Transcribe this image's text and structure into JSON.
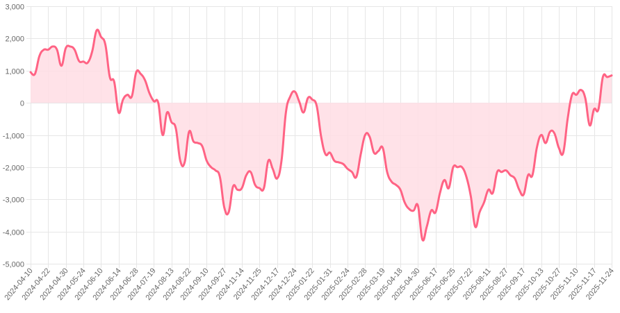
{
  "chart_data": {
    "type": "area",
    "title": "",
    "xlabel": "",
    "ylabel": "",
    "ylim": [
      -5000,
      3000
    ],
    "y_ticks": [
      3000,
      2000,
      1000,
      0,
      -1000,
      -2000,
      -3000,
      -4000,
      -5000
    ],
    "y_tick_labels": [
      "3,000",
      "2,000",
      "1,000",
      "0",
      "-1,000",
      "-2,000",
      "-3,000",
      "-4,000",
      "-5,000"
    ],
    "x_tick_labels": [
      "2024-04-10",
      "2024-04-22",
      "2024-04-30",
      "2024-05-24",
      "2024-06-10",
      "2024-06-14",
      "2024-06-28",
      "2024-07-19",
      "2024-08-13",
      "2024-08-22",
      "2024-09-10",
      "2024-09-27",
      "2024-11-14",
      "2024-11-25",
      "2024-12-17",
      "2024-12-24",
      "2025-01-22",
      "2025-01-31",
      "2025-02-24",
      "2025-02-28",
      "2025-03-19",
      "2025-04-18",
      "2025-04-30",
      "2025-06-17",
      "2025-06-25",
      "2025-07-22",
      "2025-08-11",
      "2025-08-27",
      "2025-09-17",
      "2025-10-13",
      "2025-10-27",
      "2025-11-10",
      "2025-11-17",
      "2025-11-24"
    ],
    "grid": true,
    "legend": "none",
    "colors": {
      "line": "#ff6384",
      "fill": "#ffdde4",
      "grid": "#e6e6e6",
      "axis_text": "#666666"
    },
    "series": [
      {
        "values": [
          950,
          900,
          1450,
          1650,
          1650,
          1750,
          1650,
          1150,
          1700,
          1750,
          1650,
          1300,
          1280,
          1250,
          1600,
          2250,
          2050,
          1800,
          800,
          650,
          -300,
          100,
          250,
          200,
          950,
          900,
          700,
          300,
          50,
          0,
          -1000,
          -300,
          -600,
          -800,
          -1800,
          -1850,
          -900,
          -1200,
          -1250,
          -1350,
          -1800,
          -2000,
          -2100,
          -2300,
          -3250,
          -3400,
          -2600,
          -2700,
          -2650,
          -2250,
          -2150,
          -2550,
          -2650,
          -2650,
          -1800,
          -2050,
          -2350,
          -1800,
          -300,
          200,
          350,
          50,
          -300,
          150,
          100,
          -100,
          -1050,
          -1600,
          -1550,
          -1800,
          -1850,
          -1900,
          -2050,
          -2150,
          -2300,
          -1600,
          -1000,
          -1050,
          -1550,
          -1500,
          -1400,
          -2150,
          -2450,
          -2550,
          -2700,
          -3100,
          -3300,
          -3350,
          -3200,
          -4250,
          -3850,
          -3350,
          -3400,
          -2800,
          -2400,
          -2650,
          -2000,
          -2000,
          -2000,
          -2300,
          -2900,
          -3850,
          -3400,
          -3100,
          -2700,
          -2800,
          -2150,
          -2150,
          -2100,
          -2250,
          -2350,
          -2700,
          -2850,
          -2250,
          -2250,
          -1400,
          -1000,
          -1250,
          -900,
          -950,
          -1400,
          -1550,
          -500,
          250,
          250,
          400,
          150,
          -700,
          -200,
          -200,
          800,
          800,
          850
        ]
      }
    ]
  }
}
